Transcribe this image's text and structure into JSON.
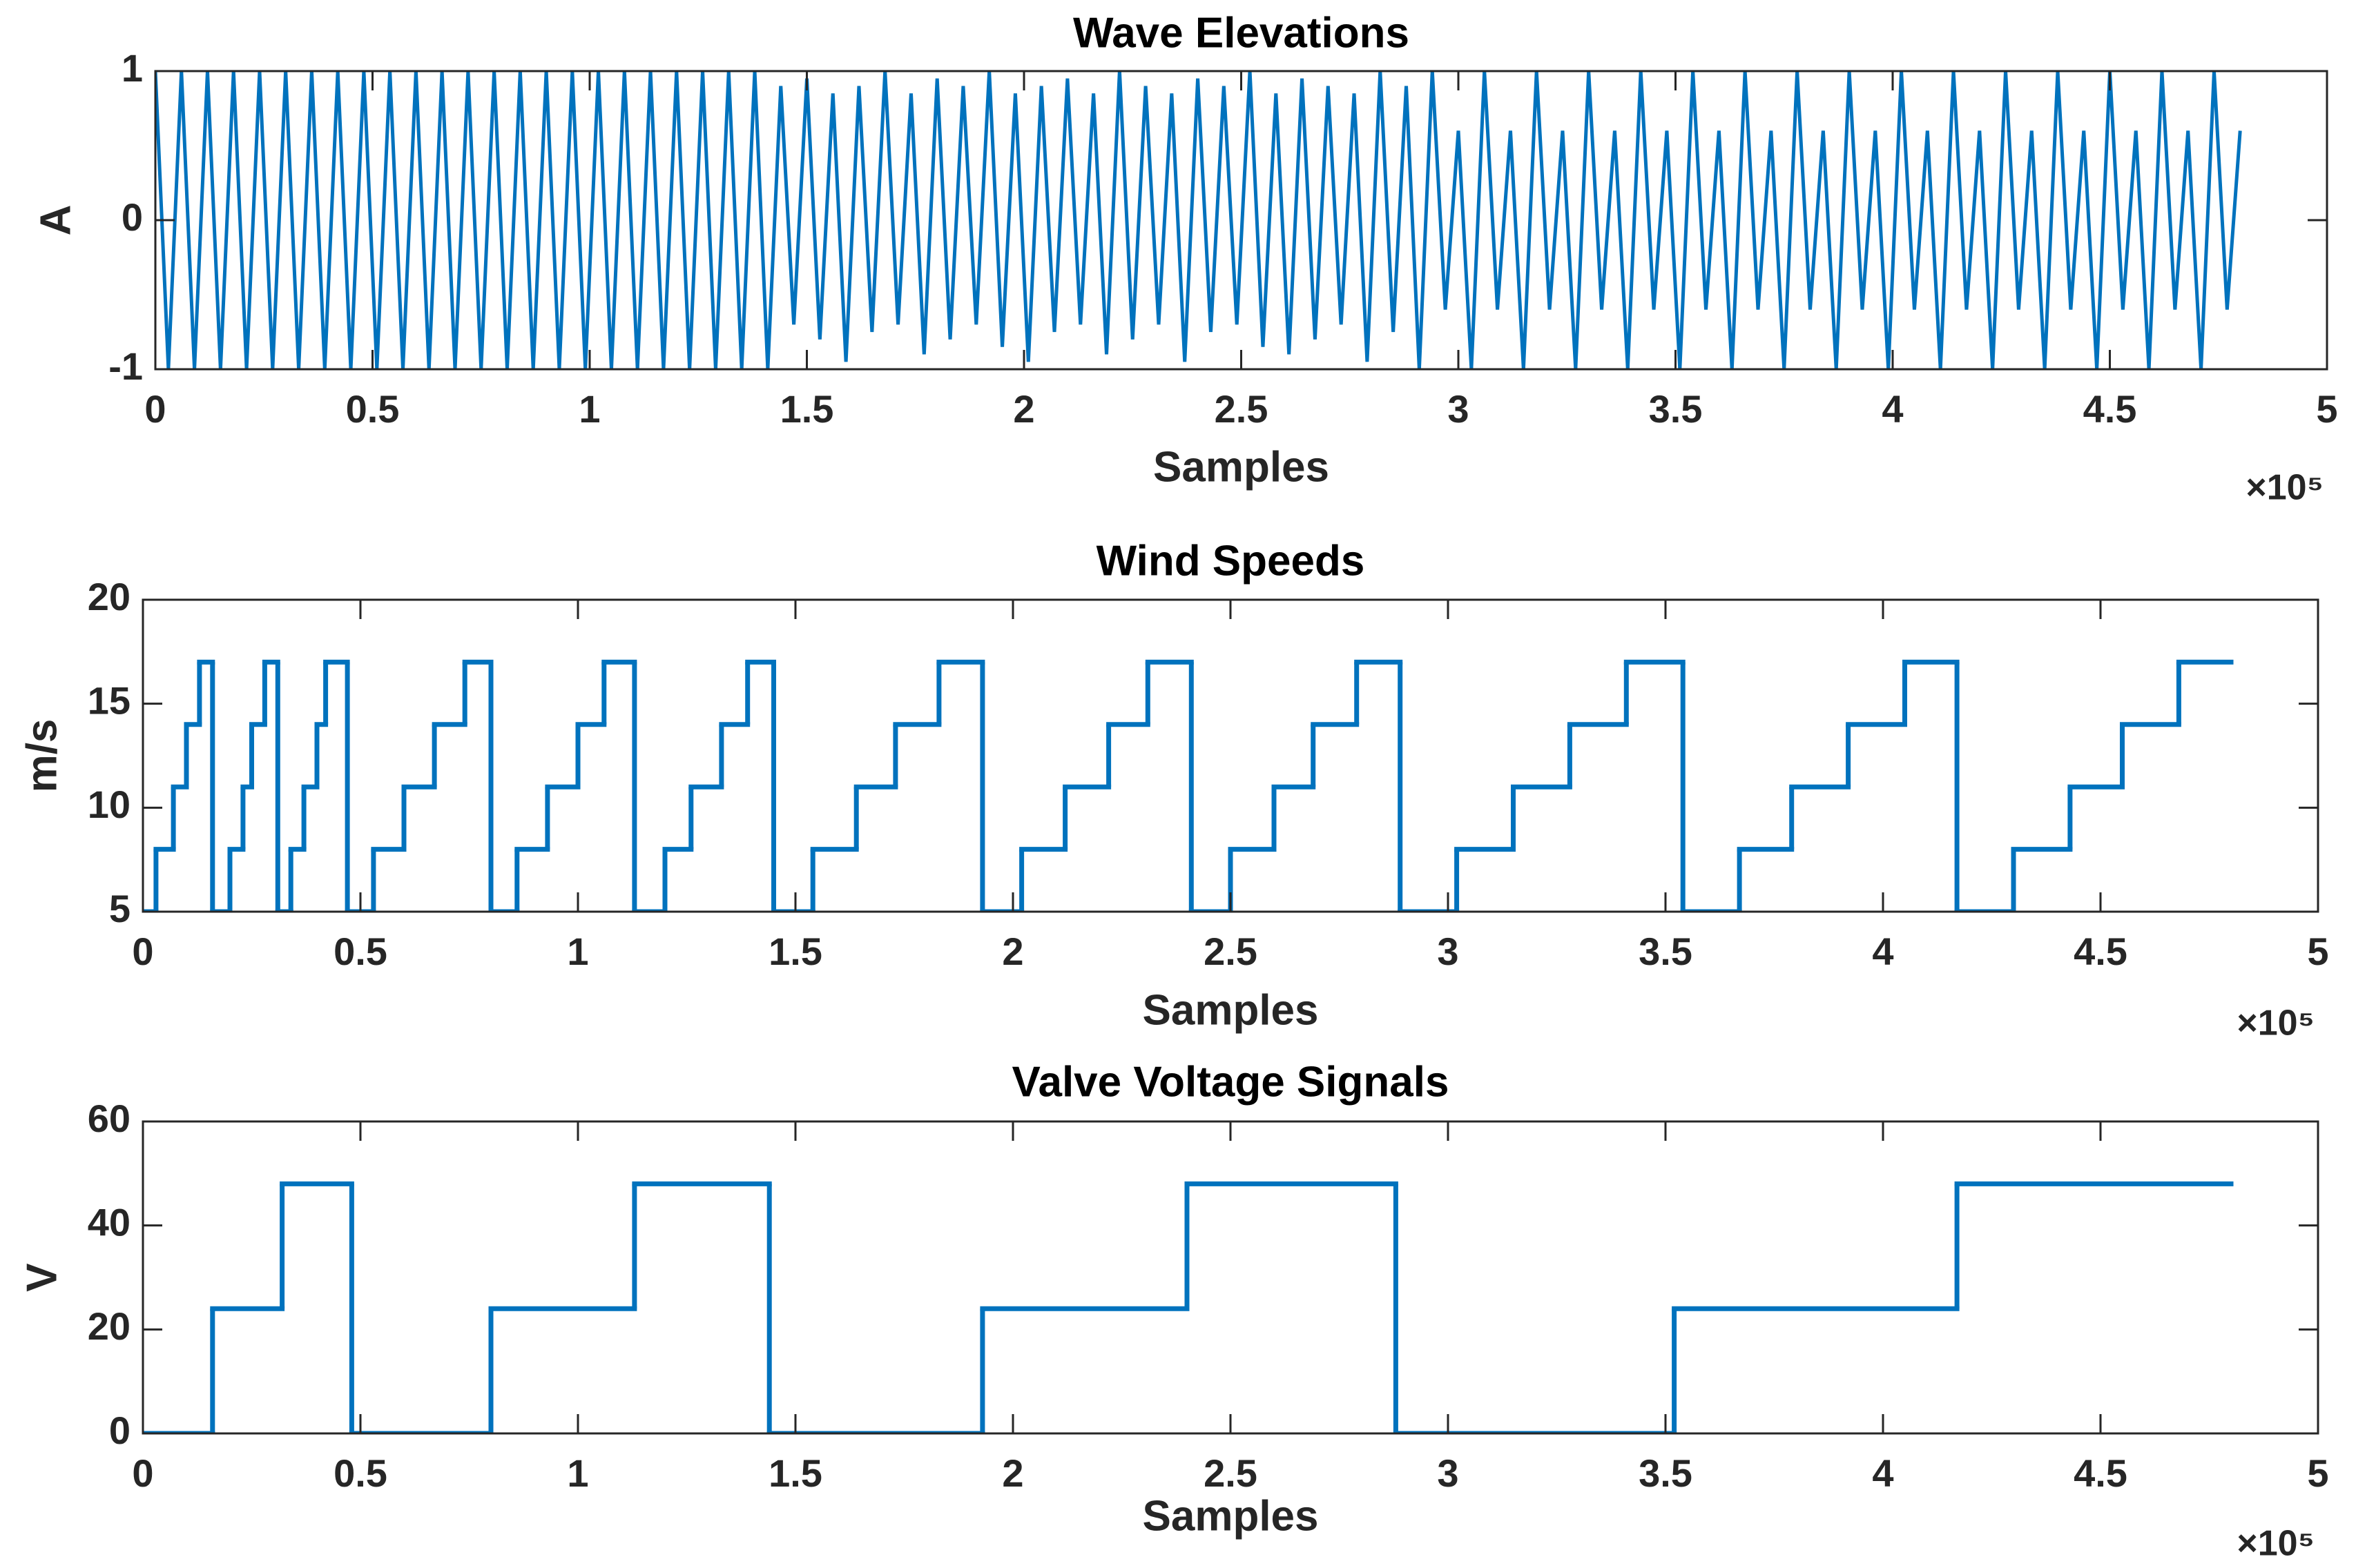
{
  "chart_data": [
    {
      "type": "line",
      "title": "Wave Elevations",
      "x_label": "Samples",
      "y_label": "A",
      "x_exponent_label": "×10⁵",
      "color": "#0072bd",
      "xlim": [
        0,
        500000
      ],
      "ylim": [
        -1,
        1
      ],
      "xticks": [
        0,
        {
          "value": 50000,
          "label": "0.5"
        },
        {
          "value": 100000,
          "label": "1"
        },
        {
          "value": 150000,
          "label": "1.5"
        },
        {
          "value": 200000,
          "label": "2"
        },
        {
          "value": 250000,
          "label": "2.5"
        },
        {
          "value": 300000,
          "label": "3"
        },
        {
          "value": 350000,
          "label": "3.5"
        },
        {
          "value": 400000,
          "label": "4"
        },
        {
          "value": 450000,
          "label": "4.5"
        },
        {
          "value": 500000,
          "label": "5"
        }
      ],
      "yticks": [
        -1,
        0,
        1
      ],
      "x": [
        0,
        3000,
        6000,
        9000,
        12000,
        15000,
        18000,
        21000,
        24000,
        27000,
        30000,
        33000,
        36000,
        39000,
        42000,
        45000,
        48000,
        51000,
        54000,
        57000,
        60000,
        63000,
        66000,
        69000,
        72000,
        75000,
        78000,
        81000,
        84000,
        87000,
        90000,
        93000,
        96000,
        99000,
        102000,
        105000,
        108000,
        111000,
        114000,
        117000,
        120000,
        123000,
        126000,
        129000,
        132000,
        135000,
        138000,
        141000,
        144000,
        147000,
        150000,
        153000,
        156000,
        159000,
        162000,
        165000,
        168000,
        171000,
        174000,
        177000,
        180000,
        183000,
        186000,
        189000,
        192000,
        195000,
        198000,
        201000,
        204000,
        207000,
        210000,
        213000,
        216000,
        219000,
        222000,
        225000,
        228000,
        231000,
        234000,
        237000,
        240000,
        243000,
        246000,
        249000,
        252000,
        255000,
        258000,
        261000,
        264000,
        267000,
        270000,
        273000,
        276000,
        279000,
        282000,
        285000,
        288000,
        291000,
        294000,
        297000,
        300000,
        303000,
        306000,
        309000,
        312000,
        315000,
        318000,
        321000,
        324000,
        327000,
        330000,
        333000,
        336000,
        339000,
        342000,
        345000,
        348000,
        351000,
        354000,
        357000,
        360000,
        363000,
        366000,
        369000,
        372000,
        375000,
        378000,
        381000,
        384000,
        387000,
        390000,
        393000,
        396000,
        399000,
        402000,
        405000,
        408000,
        411000,
        414000,
        417000,
        420000,
        423000,
        426000,
        429000,
        432000,
        435000,
        438000,
        441000,
        444000,
        447000,
        450000,
        453000,
        456000,
        459000,
        462000,
        465000,
        468000,
        471000,
        474000,
        477000,
        480000
      ],
      "values": [
        1,
        -1,
        1,
        -1,
        1,
        -1,
        1,
        -1,
        1,
        -1,
        1,
        -1,
        1,
        -1,
        1,
        -1,
        1,
        -1,
        1,
        -1,
        1,
        -1,
        1,
        -1,
        1,
        -1,
        1,
        -1,
        1,
        -1,
        1,
        -1,
        1,
        -1,
        1,
        -1,
        1,
        -1,
        1,
        -1,
        1,
        -1,
        1,
        -1,
        1,
        -1,
        1,
        -1,
        0.9,
        -0.7,
        0.95,
        -0.8,
        0.85,
        -0.95,
        0.9,
        -0.75,
        1,
        -0.7,
        0.85,
        -0.9,
        0.95,
        -0.8,
        0.9,
        -0.7,
        1,
        -0.85,
        0.85,
        -0.95,
        0.9,
        -0.75,
        0.95,
        -0.7,
        0.85,
        -0.9,
        1,
        -0.8,
        0.9,
        -0.7,
        0.85,
        -0.95,
        0.95,
        -0.75,
        0.9,
        -0.7,
        1,
        -0.85,
        0.85,
        -0.9,
        0.95,
        -0.8,
        0.9,
        -0.7,
        0.85,
        -0.95,
        1,
        -0.75,
        0.9,
        -1,
        1,
        -0.6,
        0.6,
        -1,
        1,
        -0.6,
        0.6,
        -1,
        1,
        -0.6,
        0.6,
        -1,
        1,
        -0.6,
        0.6,
        -1,
        1,
        -0.6,
        0.6,
        -1,
        1,
        -0.6,
        0.6,
        -1,
        1,
        -0.6,
        0.6,
        -1,
        1,
        -0.6,
        0.6,
        -1,
        1,
        -0.6,
        0.6,
        -1,
        1,
        -0.6,
        0.6,
        -1,
        1,
        -0.6,
        0.6,
        -1,
        1,
        -0.6,
        0.6,
        -1,
        1,
        -0.6,
        0.6,
        -1,
        1,
        -0.6,
        0.6,
        -1,
        1,
        -0.6,
        0.6,
        -1,
        1,
        -0.6,
        0.6
      ]
    },
    {
      "type": "step",
      "title": "Wind Speeds",
      "x_label": "Samples",
      "y_label": "m/s",
      "x_exponent_label": "×10⁵",
      "color": "#0072bd",
      "xlim": [
        0,
        500000
      ],
      "ylim": [
        5,
        20
      ],
      "xticks": [
        0,
        {
          "value": 50000,
          "label": "0.5"
        },
        {
          "value": 100000,
          "label": "1"
        },
        {
          "value": 150000,
          "label": "1.5"
        },
        {
          "value": 200000,
          "label": "2"
        },
        {
          "value": 250000,
          "label": "2.5"
        },
        {
          "value": 300000,
          "label": "3"
        },
        {
          "value": 350000,
          "label": "3.5"
        },
        {
          "value": 400000,
          "label": "4"
        },
        {
          "value": 450000,
          "label": "4.5"
        },
        {
          "value": 500000,
          "label": "5"
        }
      ],
      "yticks": [
        5,
        10,
        15,
        20
      ],
      "x": [
        0,
        3000,
        7000,
        10000,
        13000,
        16000,
        20000,
        23000,
        25000,
        28000,
        31000,
        34000,
        37000,
        40000,
        42000,
        47000,
        53000,
        60000,
        67000,
        74000,
        80000,
        86000,
        93000,
        100000,
        106000,
        113000,
        120000,
        126000,
        133000,
        139000,
        145000,
        154000,
        164000,
        173000,
        183000,
        193000,
        202000,
        212000,
        222000,
        231000,
        241000,
        250000,
        260000,
        269000,
        279000,
        289000,
        302000,
        315000,
        328000,
        341000,
        354000,
        367000,
        379000,
        392000,
        405000,
        417000,
        430000,
        443000,
        455000,
        468000,
        480000
      ],
      "values": [
        5,
        8,
        11,
        14,
        17,
        5,
        8,
        11,
        14,
        17,
        5,
        8,
        11,
        14,
        17,
        5,
        8,
        11,
        14,
        17,
        5,
        8,
        11,
        14,
        17,
        5,
        8,
        11,
        14,
        17,
        5,
        8,
        11,
        14,
        17,
        5,
        8,
        11,
        14,
        17,
        5,
        8,
        11,
        14,
        17,
        5,
        8,
        11,
        14,
        17,
        5,
        8,
        11,
        14,
        17,
        5,
        8,
        11,
        14,
        17,
        17
      ]
    },
    {
      "type": "step",
      "title": "Valve Voltage Signals",
      "x_label": "Samples",
      "y_label": "V",
      "x_exponent_label": "×10⁵",
      "color": "#0072bd",
      "xlim": [
        0,
        500000
      ],
      "ylim": [
        0,
        60
      ],
      "xticks": [
        0,
        {
          "value": 50000,
          "label": "0.5"
        },
        {
          "value": 100000,
          "label": "1"
        },
        {
          "value": 150000,
          "label": "1.5"
        },
        {
          "value": 200000,
          "label": "2"
        },
        {
          "value": 250000,
          "label": "2.5"
        },
        {
          "value": 300000,
          "label": "3"
        },
        {
          "value": 350000,
          "label": "3.5"
        },
        {
          "value": 400000,
          "label": "4"
        },
        {
          "value": 450000,
          "label": "4.5"
        },
        {
          "value": 500000,
          "label": "5"
        }
      ],
      "yticks": [
        0,
        20,
        40,
        60
      ],
      "x": [
        0,
        16000,
        32000,
        48000,
        80000,
        113000,
        144000,
        193000,
        240000,
        288000,
        352000,
        417000,
        480000
      ],
      "values": [
        0,
        24,
        48,
        0,
        24,
        48,
        0,
        24,
        48,
        0,
        24,
        48,
        48
      ]
    }
  ]
}
